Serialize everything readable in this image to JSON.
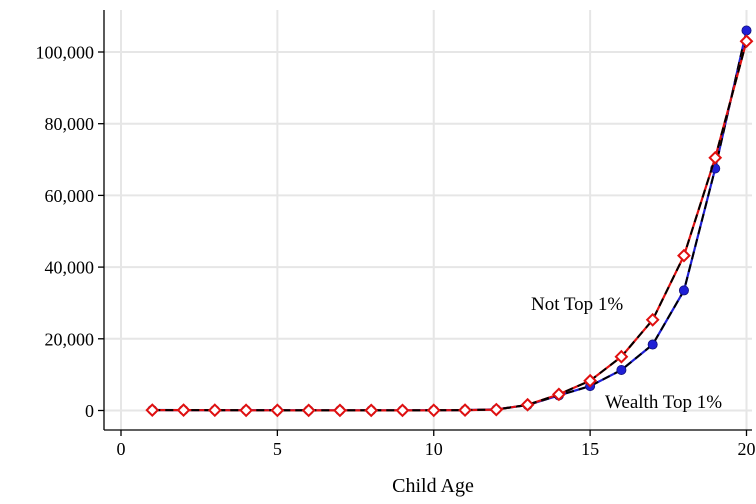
{
  "chart_data": {
    "type": "line",
    "title": "",
    "xlabel": "Child Age",
    "ylabel": "",
    "xlim": [
      0,
      20
    ],
    "ylim": [
      -3000,
      112000
    ],
    "xticks": [
      0,
      5,
      10,
      15,
      20
    ],
    "xtick_labels": [
      "0",
      "5",
      "10",
      "15",
      "20"
    ],
    "yticks": [
      0,
      20000,
      40000,
      60000,
      80000,
      100000
    ],
    "ytick_labels": [
      "0",
      "20,000",
      "40,000",
      "60,000",
      "80,000",
      "100,000"
    ],
    "grid": true,
    "x": [
      1,
      2,
      3,
      4,
      5,
      6,
      7,
      8,
      9,
      10,
      11,
      12,
      13,
      14,
      15,
      16,
      17,
      18,
      19,
      20
    ],
    "series": [
      {
        "name": "Wealth Top 1%",
        "color": "#1f1fd6",
        "marker": "circle",
        "values": [
          150,
          120,
          100,
          80,
          70,
          60,
          60,
          60,
          60,
          80,
          120,
          300,
          1500,
          4200,
          6800,
          11300,
          18400,
          33500,
          67500,
          106000
        ]
      },
      {
        "name": "Not Top 1%",
        "color": "#e01010",
        "marker": "diamond",
        "values": [
          100,
          100,
          80,
          60,
          50,
          40,
          40,
          40,
          40,
          60,
          100,
          250,
          1600,
          4500,
          8300,
          15000,
          25300,
          43200,
          70500,
          103000
        ]
      }
    ],
    "annotations": [
      {
        "text": "Not Top 1%",
        "series": "Not Top 1%"
      },
      {
        "text": "Wealth Top 1%",
        "series": "Wealth Top 1%"
      }
    ]
  }
}
